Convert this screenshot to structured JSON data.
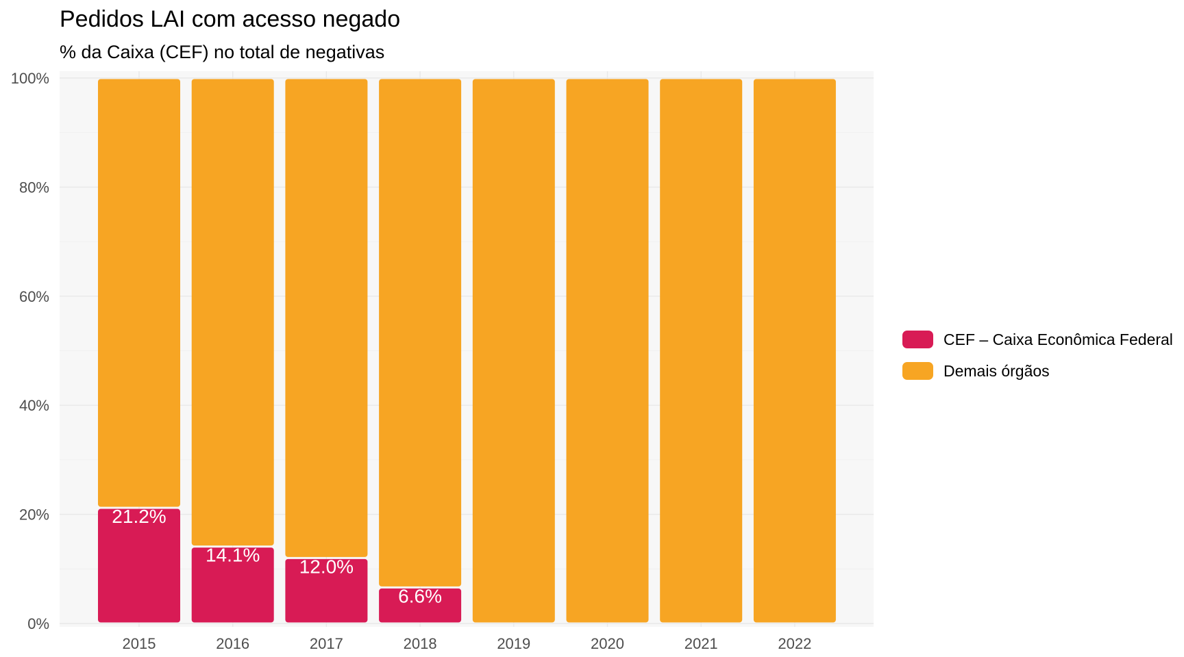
{
  "chart_data": {
    "type": "bar",
    "stacked": true,
    "title": "Pedidos LAI com acesso negado",
    "subtitle": "% da Caixa (CEF) no total de negativas",
    "xlabel": "",
    "ylabel": "",
    "categories": [
      "2015",
      "2016",
      "2017",
      "2018",
      "2019",
      "2020",
      "2021",
      "2022"
    ],
    "series": [
      {
        "name": "CEF – Caixa Econômica Federal",
        "color": "#D81B55",
        "values": [
          21.2,
          14.1,
          12.0,
          6.6,
          0,
          0,
          0,
          0
        ],
        "labels": [
          "21.2%",
          "14.1%",
          "12.0%",
          "6.6%",
          "",
          "",
          "",
          ""
        ]
      },
      {
        "name": "Demais órgãos",
        "color": "#F7A523",
        "values": [
          78.8,
          85.9,
          88.0,
          93.4,
          100,
          100,
          100,
          100
        ]
      }
    ],
    "ylim": [
      0,
      100
    ],
    "yticks": [
      0,
      20,
      40,
      60,
      80,
      100
    ],
    "ytick_labels": [
      "0%",
      "20%",
      "40%",
      "60%",
      "80%",
      "100%"
    ],
    "grid": true,
    "legend_position": "right"
  }
}
